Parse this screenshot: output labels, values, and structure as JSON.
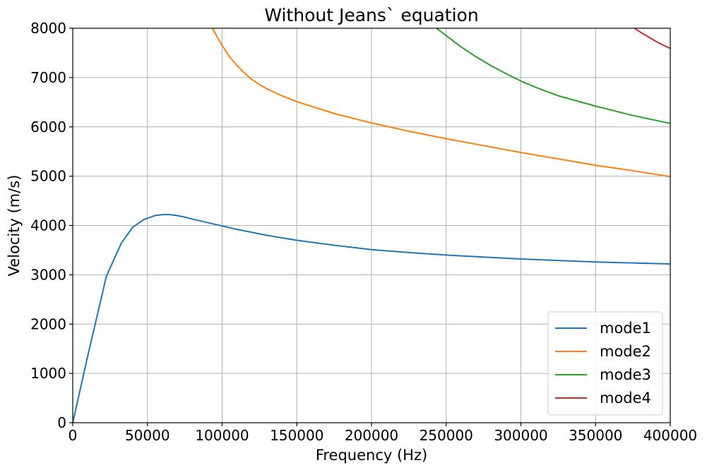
{
  "chart_data": {
    "type": "line",
    "title": "Without Jeans` equation",
    "xlabel": "Frequency (Hz)",
    "ylabel": "Velocity (m/s)",
    "xlim": [
      0,
      400000
    ],
    "ylim": [
      0,
      8000
    ],
    "x_ticks": [
      0,
      50000,
      100000,
      150000,
      200000,
      250000,
      300000,
      350000,
      400000
    ],
    "x_tick_labels": [
      "0",
      "50000",
      "100000",
      "150000",
      "200000",
      "250000",
      "300000",
      "350000",
      "400000"
    ],
    "y_ticks": [
      0,
      1000,
      2000,
      3000,
      4000,
      5000,
      6000,
      7000,
      8000
    ],
    "y_tick_labels": [
      "0",
      "1000",
      "2000",
      "3000",
      "4000",
      "5000",
      "6000",
      "7000",
      "8000"
    ],
    "grid": true,
    "legend_position": "lower-right",
    "series": [
      {
        "name": "mode1",
        "color": "#1f77b4",
        "points": [
          [
            0,
            0
          ],
          [
            10000,
            1350
          ],
          [
            22500,
            2970
          ],
          [
            32500,
            3640
          ],
          [
            40000,
            3960
          ],
          [
            47500,
            4120
          ],
          [
            55000,
            4200
          ],
          [
            60000,
            4220
          ],
          [
            65000,
            4220
          ],
          [
            70000,
            4200
          ],
          [
            75000,
            4170
          ],
          [
            80000,
            4130
          ],
          [
            90000,
            4060
          ],
          [
            100000,
            3990
          ],
          [
            110000,
            3920
          ],
          [
            120000,
            3860
          ],
          [
            130000,
            3800
          ],
          [
            140000,
            3750
          ],
          [
            150000,
            3700
          ],
          [
            175000,
            3600
          ],
          [
            200000,
            3510
          ],
          [
            225000,
            3450
          ],
          [
            250000,
            3400
          ],
          [
            275000,
            3360
          ],
          [
            300000,
            3320
          ],
          [
            325000,
            3290
          ],
          [
            350000,
            3260
          ],
          [
            375000,
            3240
          ],
          [
            400000,
            3220
          ]
        ]
      },
      {
        "name": "mode2",
        "color": "#ff7f0e",
        "points": [
          [
            93500,
            8000
          ],
          [
            97500,
            7780
          ],
          [
            100000,
            7650
          ],
          [
            105000,
            7420
          ],
          [
            110000,
            7240
          ],
          [
            115000,
            7090
          ],
          [
            120000,
            6960
          ],
          [
            125000,
            6860
          ],
          [
            130000,
            6770
          ],
          [
            140000,
            6630
          ],
          [
            150000,
            6510
          ],
          [
            175000,
            6270
          ],
          [
            200000,
            6080
          ],
          [
            225000,
            5910
          ],
          [
            250000,
            5760
          ],
          [
            275000,
            5620
          ],
          [
            300000,
            5480
          ],
          [
            325000,
            5350
          ],
          [
            350000,
            5220
          ],
          [
            375000,
            5110
          ],
          [
            400000,
            4990
          ]
        ]
      },
      {
        "name": "mode3",
        "color": "#2ca02c",
        "points": [
          [
            243500,
            8000
          ],
          [
            250000,
            7850
          ],
          [
            260000,
            7620
          ],
          [
            270000,
            7420
          ],
          [
            280000,
            7240
          ],
          [
            290000,
            7080
          ],
          [
            300000,
            6930
          ],
          [
            310000,
            6800
          ],
          [
            325000,
            6630
          ],
          [
            350000,
            6420
          ],
          [
            375000,
            6230
          ],
          [
            400000,
            6070
          ]
        ]
      },
      {
        "name": "mode4",
        "color": "#d62728",
        "points": [
          [
            376000,
            8000
          ],
          [
            380000,
            7920
          ],
          [
            385000,
            7830
          ],
          [
            390000,
            7740
          ],
          [
            395000,
            7660
          ],
          [
            400000,
            7590
          ]
        ]
      }
    ]
  }
}
